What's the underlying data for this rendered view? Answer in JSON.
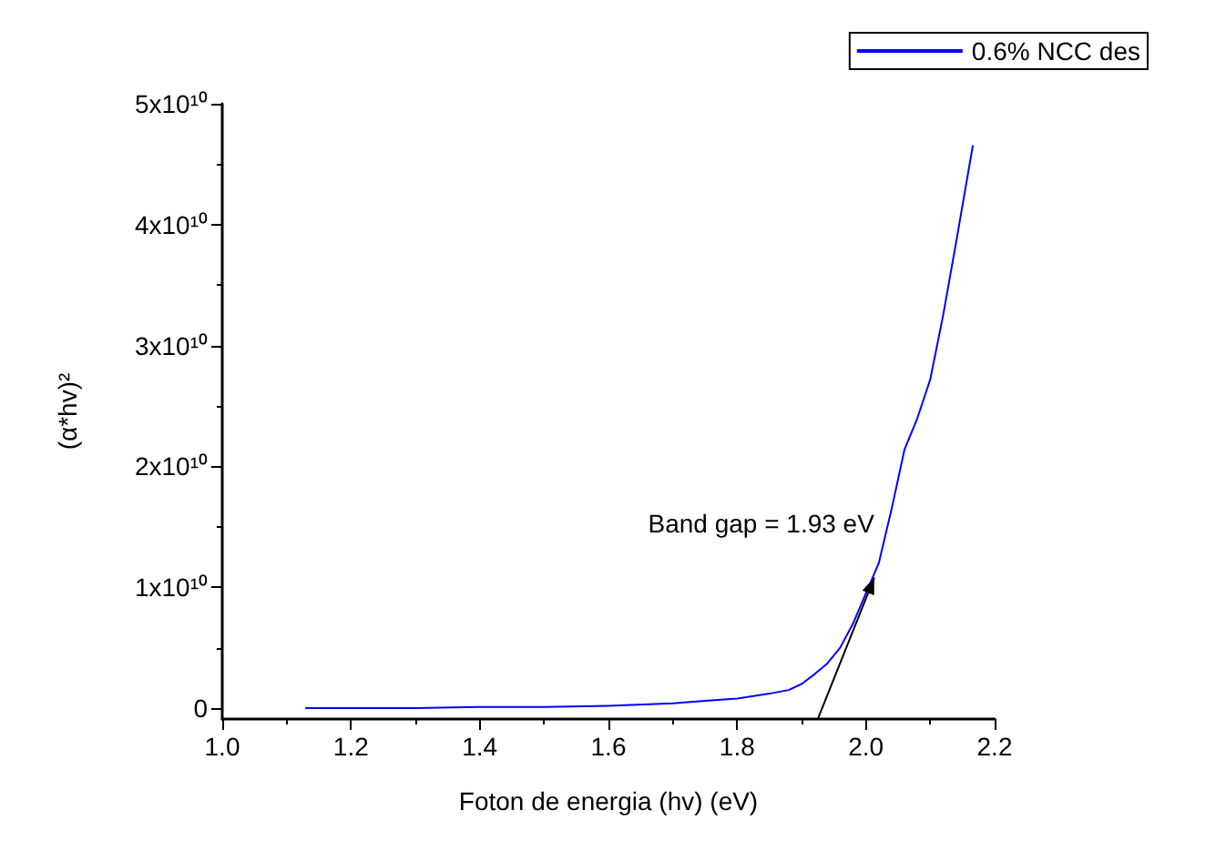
{
  "chart_data": {
    "type": "line",
    "xlabel": "Foton de energia (hv) (eV)",
    "ylabel": "(α*hv)²",
    "x": [
      1.13,
      1.2,
      1.3,
      1.4,
      1.5,
      1.6,
      1.7,
      1.75,
      1.8,
      1.85,
      1.88,
      1.9,
      1.92,
      1.94,
      1.96,
      1.98,
      2.0,
      2.02,
      2.04,
      2.06,
      2.08,
      2.1,
      2.12,
      2.14,
      2.166
    ],
    "series": [
      {
        "name": "0.6% NCC des",
        "color": "#0000ff",
        "values": [
          0,
          0,
          0,
          100000000,
          100000000,
          200000000,
          400000000,
          600000000,
          800000000,
          1200000000,
          1500000000,
          2000000000,
          2800000000,
          3700000000,
          5000000000,
          7000000000,
          9500000000,
          12000000000,
          16500000000,
          21400000000,
          24000000000,
          27200000000,
          32500000000,
          38500000000,
          46500000000
        ]
      }
    ],
    "annotations": [
      {
        "text": "Band gap = 1.93 eV",
        "x": 2.013,
        "y": 10800000000
      }
    ],
    "xlim": [
      1.0,
      2.2
    ],
    "xticks": [
      {
        "value": 1.0,
        "label": "1.0"
      },
      1.2,
      1.4,
      1.6,
      1.8,
      {
        "value": 2.0,
        "label": "2.0"
      },
      2.2
    ],
    "ylim": [
      -900000000,
      50000000000
    ],
    "yticks": [
      {
        "value": 0,
        "label": "0"
      },
      {
        "value": 10000000000,
        "label": "1x10¹⁰"
      },
      {
        "value": 20000000000,
        "label": "2x10¹⁰"
      },
      {
        "value": 30000000000,
        "label": "3x10¹⁰"
      },
      {
        "value": 40000000000,
        "label": "4x10¹⁰"
      },
      {
        "value": 50000000000,
        "label": "5x10¹⁰"
      }
    ],
    "legend": "top right",
    "grid": false,
    "marker": "none"
  }
}
